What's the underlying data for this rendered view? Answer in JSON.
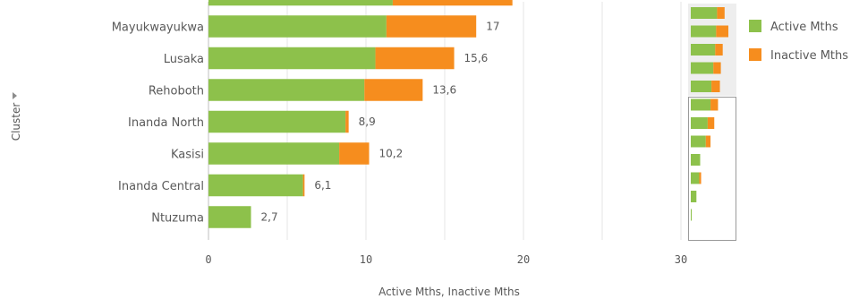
{
  "chart_data": {
    "type": "bar",
    "orientation": "horizontal",
    "stacked": true,
    "categories": [
      "",
      "Mayukwayukwa",
      "Lusaka",
      "Rehoboth",
      "Inanda North",
      "Kasisi",
      "Inanda Central",
      "Ntuzuma"
    ],
    "series": [
      {
        "name": "Active Mths",
        "color": "#8dc14b",
        "values": [
          11.7,
          11.3,
          10.6,
          9.9,
          8.7,
          8.3,
          6.0,
          2.7
        ]
      },
      {
        "name": "Inactive Mths",
        "color": "#f68d1e",
        "values": [
          7.6,
          5.7,
          5.0,
          3.7,
          0.2,
          1.9,
          0.1,
          0
        ]
      }
    ],
    "totals": [
      "",
      "17",
      "15,6",
      "13,6",
      "8,9",
      "10,2",
      "6,1",
      "2,7"
    ],
    "xlim": [
      0,
      33
    ],
    "xticks": [
      0,
      5,
      10,
      15,
      20,
      25,
      30
    ],
    "xtick_labels": [
      "0",
      "",
      "10",
      "",
      "20",
      "",
      "30"
    ],
    "xlabel": "Active Mths, Inactive Mths",
    "ylabel": "Cluster",
    "grid": true,
    "legend_position": "right",
    "minimap": {
      "active": [
        2.8,
        2.7,
        2.6,
        2.4,
        2.2,
        2.1,
        1.8,
        1.6,
        1.0,
        0.9,
        0.6,
        0.1
      ],
      "inactive": [
        0.8,
        1.3,
        0.8,
        0.8,
        0.9,
        0.8,
        0.7,
        0.5,
        0.0,
        0.2,
        0.0,
        0.0
      ]
    }
  }
}
